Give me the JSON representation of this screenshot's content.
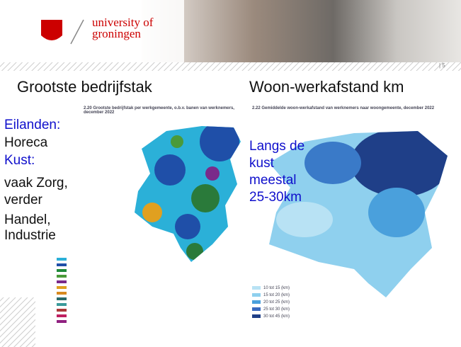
{
  "header": {
    "logo_line1": "university of",
    "logo_line2": "groningen",
    "page_number": "| 5"
  },
  "left": {
    "heading": "Grootste bedrijfstak",
    "map_title": "2.20  Grootste bedrijfstak per werkgemeente, o.b.v. banen van werknemers, december 2022",
    "notes": [
      "Eilanden:",
      "Horeca",
      "Kust:",
      "vaak Zorg,",
      "verder",
      "Handel,",
      "Industrie"
    ]
  },
  "right": {
    "heading": "Woon-werkafstand km",
    "map_title": "2.22  Gemiddelde woon-werkafstand van werknemers naar woongemeente, december 2022",
    "notes": [
      "Langs de",
      "kust",
      "meestal",
      "25-30km"
    ],
    "legend": [
      "10 tot 15 (km)",
      "15 tot 20 (km)",
      "20 tot 25 (km)",
      "25 tot 30 (km)",
      "30 tot 45 (km)"
    ]
  }
}
